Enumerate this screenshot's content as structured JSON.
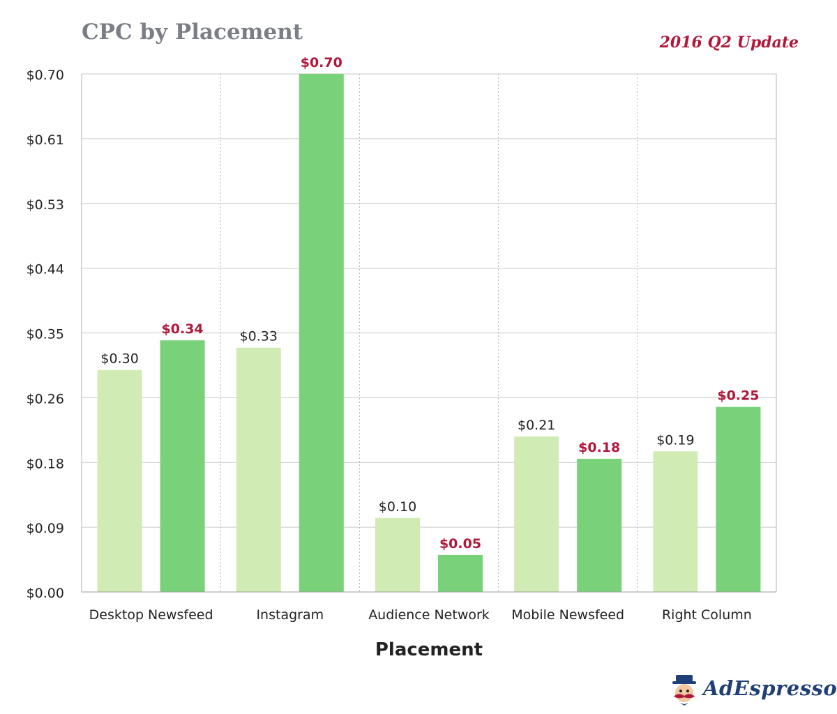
{
  "header": {
    "title": "CPC by Placement",
    "subtitle": "2016 Q2 Update"
  },
  "brand": {
    "name": "AdEspresso",
    "icon": "mustache-mascot-icon"
  },
  "colors": {
    "previous": "#d0ebb4",
    "current": "#79d27a",
    "highlight_label": "#b0183a",
    "grid": "#c9c9c9",
    "text": "#222222"
  },
  "chart_data": {
    "type": "bar",
    "title": "CPC by Placement",
    "subtitle": "2016 Q2 Update",
    "xlabel": "Placement",
    "ylabel": "",
    "categories": [
      "Desktop Newsfeed",
      "Instagram",
      "Audience Network",
      "Mobile Newsfeed",
      "Right Column"
    ],
    "series": [
      {
        "values": [
          0.3,
          0.33,
          0.1,
          0.21,
          0.19
        ],
        "labels": [
          "$0.30",
          "$0.33",
          "$0.10",
          "$0.21",
          "$0.19"
        ]
      },
      {
        "values": [
          0.34,
          0.7,
          0.05,
          0.18,
          0.25
        ],
        "labels": [
          "$0.34",
          "$0.70",
          "$0.05",
          "$0.18",
          "$0.25"
        ]
      }
    ],
    "yticks": [
      "$0.00",
      "$0.09",
      "$0.18",
      "$0.26",
      "$0.35",
      "$0.44",
      "$0.53",
      "$0.61",
      "$0.70"
    ],
    "ylim": [
      0,
      0.7
    ],
    "grid": true,
    "legend": "none"
  }
}
